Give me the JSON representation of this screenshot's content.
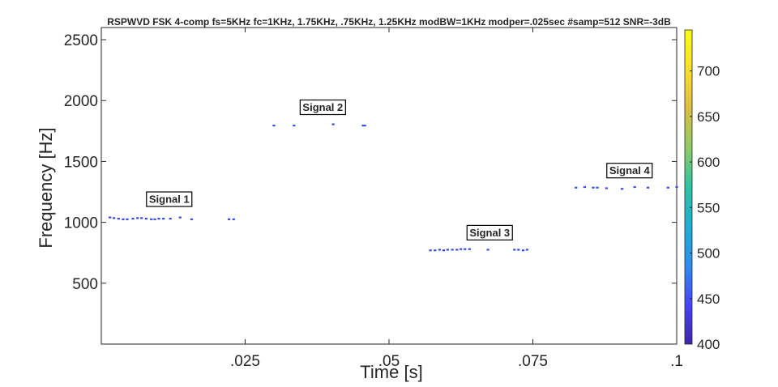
{
  "chart_data": {
    "type": "scatter",
    "title": "RSPWVD FSK 4-comp fs=5KHz fc=1KHz, 1.75KHz, .75KHz, 1.25KHz modBW=1KHz modper=.025sec #samp=512 SNR=-3dB",
    "xlabel": "Time [s]",
    "ylabel": "Frequency [Hz]",
    "xlim": [
      0,
      0.1
    ],
    "ylim": [
      0,
      2600
    ],
    "xticks": [
      0.025,
      0.05,
      0.075,
      0.1
    ],
    "xtick_labels": [
      ".025",
      ".05",
      ".075",
      ".1"
    ],
    "yticks": [
      500,
      1000,
      1500,
      2000,
      2500
    ],
    "ytick_labels": [
      "500",
      "1000",
      "1500",
      "2000",
      "2500"
    ],
    "grid": false,
    "colorbar": {
      "lim": [
        400,
        745
      ],
      "ticks": [
        400,
        450,
        500,
        550,
        600,
        650,
        700
      ],
      "tick_labels": [
        "400",
        "450",
        "500",
        "550",
        "600",
        "650",
        "700"
      ],
      "colormap": "parula",
      "colors": [
        "#3e26a8",
        "#4743f8",
        "#2f8ded",
        "#1eaed4",
        "#2cc3a3",
        "#8ecb65",
        "#ddbd45",
        "#fbdf2b",
        "#f9fb15"
      ]
    },
    "point_color": "#3a4de0",
    "series": [
      {
        "x": [
          0.0015,
          0.0022,
          0.003,
          0.0038,
          0.0045,
          0.0055,
          0.0063,
          0.007,
          0.0078,
          0.0087,
          0.0093,
          0.01,
          0.0108,
          0.012,
          0.0137,
          0.0157,
          0.0222,
          0.023
        ],
        "y": [
          1040,
          1035,
          1030,
          1025,
          1025,
          1030,
          1035,
          1035,
          1030,
          1025,
          1025,
          1030,
          1030,
          1030,
          1040,
          1025,
          1025,
          1025
        ]
      },
      {
        "x": [
          0.03,
          0.0335,
          0.0403,
          0.0455,
          0.0458
        ],
        "y": [
          1795,
          1795,
          1805,
          1795,
          1795
        ]
      },
      {
        "x": [
          0.0572,
          0.058,
          0.0588,
          0.0595,
          0.0602,
          0.061,
          0.0618,
          0.0625,
          0.0632,
          0.064,
          0.0672,
          0.0718,
          0.0725,
          0.0733,
          0.074
        ],
        "y": [
          770,
          770,
          775,
          770,
          775,
          775,
          775,
          780,
          780,
          780,
          775,
          775,
          775,
          770,
          775
        ]
      },
      {
        "x": [
          0.0825,
          0.084,
          0.0855,
          0.0862,
          0.0878,
          0.0905,
          0.0927,
          0.095,
          0.0985,
          0.1
        ],
        "y": [
          1285,
          1290,
          1285,
          1285,
          1280,
          1275,
          1290,
          1285,
          1285,
          1290
        ]
      }
    ],
    "annotations": [
      {
        "text": "Signal 1",
        "x": 0.0118,
        "y": 1190
      },
      {
        "text": "Signal 2",
        "x": 0.0385,
        "y": 1945
      },
      {
        "text": "Signal 3",
        "x": 0.0675,
        "y": 915
      },
      {
        "text": "Signal 4",
        "x": 0.0918,
        "y": 1425
      }
    ]
  }
}
